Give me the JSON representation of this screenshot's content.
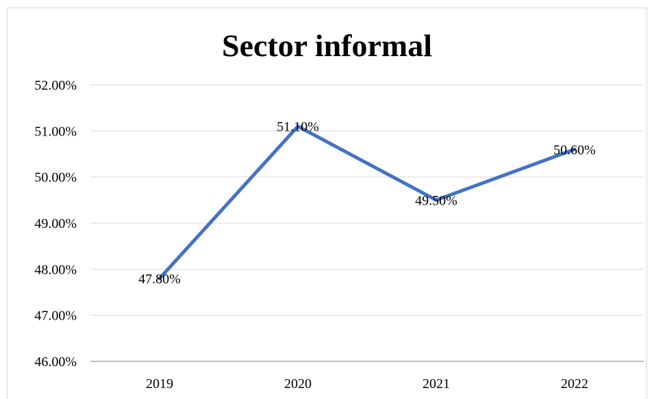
{
  "chart_data": {
    "type": "line",
    "title": "Sector informal",
    "categories": [
      "2019",
      "2020",
      "2021",
      "2022"
    ],
    "series": [
      {
        "values": [
          47.8,
          51.1,
          49.5,
          50.6
        ],
        "color": "#4472c4"
      }
    ],
    "data_labels": [
      "47.80%",
      "51.10%",
      "49.50%",
      "50.60%"
    ],
    "ylim": [
      46,
      52
    ],
    "yticks": [
      "46.00%",
      "47.00%",
      "48.00%",
      "49.00%",
      "50.00%",
      "51.00%",
      "52.00%"
    ],
    "grid": true,
    "legend": "none",
    "xlabel": "",
    "ylabel": ""
  }
}
